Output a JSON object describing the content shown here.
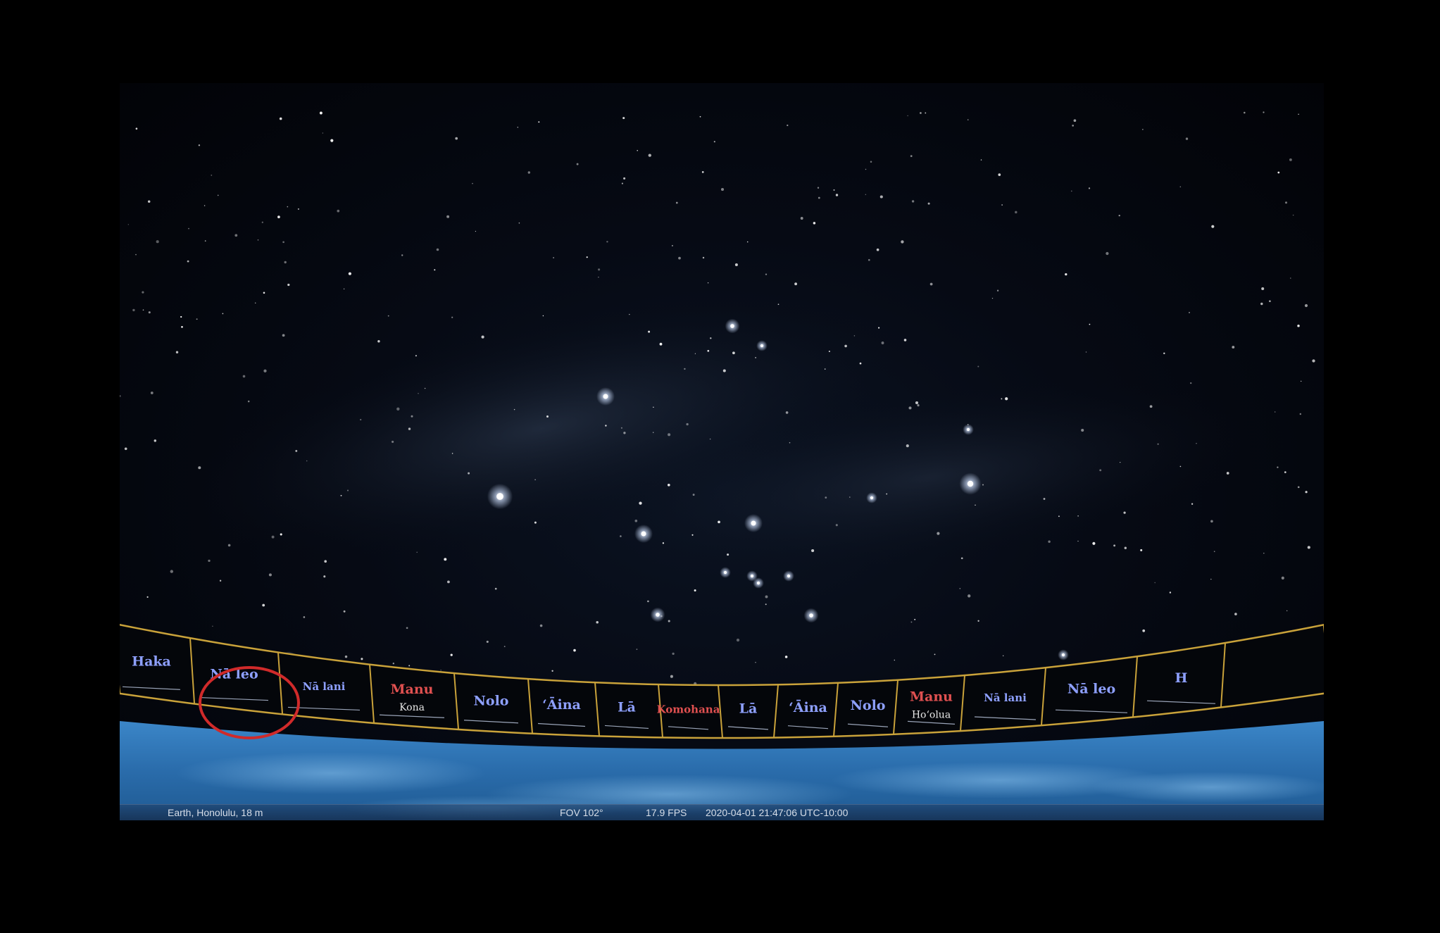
{
  "statusbar": {
    "location": "Earth, Honolulu, 18 m",
    "fov": "FOV 102°",
    "fps": "17.9 FPS",
    "datetime": "2020-04-01 21:47:06 UTC-10:00"
  },
  "compass": {
    "segments": [
      {
        "top": "Haka",
        "bottom": "",
        "color": "#8ea0ff"
      },
      {
        "top": "Nā leo",
        "bottom": "",
        "color": "#8ea0ff",
        "highlighted": true
      },
      {
        "top": "Nā lani",
        "bottom": "",
        "color": "#8ea0ff"
      },
      {
        "top": "Manu",
        "bottom": "Kona",
        "color": "#e05050"
      },
      {
        "top": "Nolo",
        "bottom": "",
        "color": "#8ea0ff"
      },
      {
        "top": "ʻĀina",
        "bottom": "",
        "color": "#8ea0ff"
      },
      {
        "top": "Lā",
        "bottom": "",
        "color": "#8ea0ff"
      },
      {
        "top": "Komohana",
        "bottom": "",
        "color": "#e05050"
      },
      {
        "top": "Lā",
        "bottom": "",
        "color": "#8ea0ff"
      },
      {
        "top": "ʻĀina",
        "bottom": "",
        "color": "#8ea0ff"
      },
      {
        "top": "Nolo",
        "bottom": "",
        "color": "#8ea0ff"
      },
      {
        "top": "Manu",
        "bottom": "Hoʻolua",
        "color": "#e05050"
      },
      {
        "top": "Nā lani",
        "bottom": "",
        "color": "#8ea0ff"
      },
      {
        "top": "Nā leo",
        "bottom": "",
        "color": "#8ea0ff"
      },
      {
        "top": "H",
        "bottom": "",
        "color": "#8ea0ff"
      }
    ]
  },
  "colors": {
    "compass_border": "#c9a23a",
    "highlight_ring": "#d02a2a",
    "ocean": "#2a6fb0"
  }
}
